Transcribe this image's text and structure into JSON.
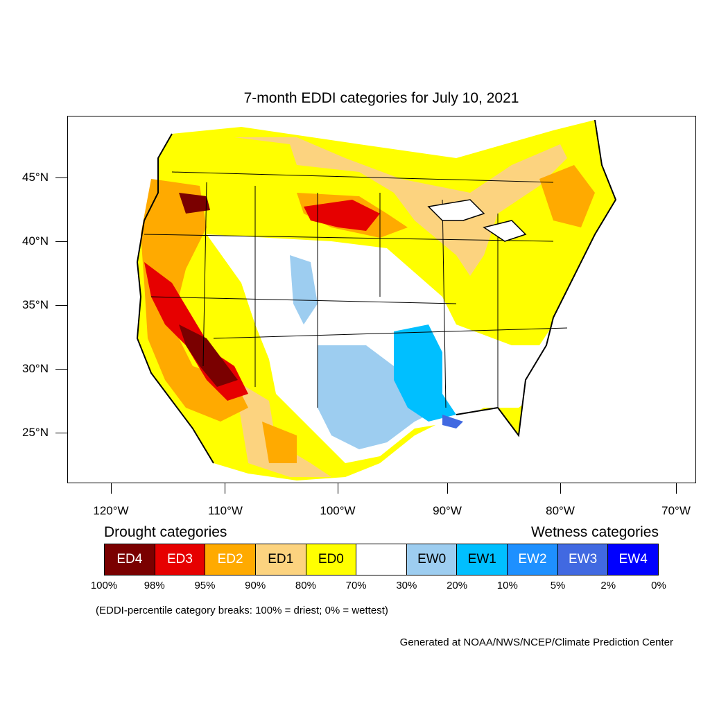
{
  "title": "7-month EDDI categories for July 10, 2021",
  "map": {
    "latitude_labels": [
      "45°N",
      "40°N",
      "35°N",
      "30°N",
      "25°N"
    ],
    "longitude_labels": [
      "120°W",
      "110°W",
      "100°W",
      "90°W",
      "80°W",
      "70°W"
    ]
  },
  "legend": {
    "drought_heading": "Drought categories",
    "wetness_heading": "Wetness categories",
    "categories": [
      {
        "label": "ED4",
        "color": "#7a0000",
        "text_color": "#ffffff"
      },
      {
        "label": "ED3",
        "color": "#e60000",
        "text_color": "#ffffff"
      },
      {
        "label": "ED2",
        "color": "#ffaa00",
        "text_color": "#ffffff"
      },
      {
        "label": "ED1",
        "color": "#fcd37f",
        "text_color": "#000000"
      },
      {
        "label": "ED0",
        "color": "#ffff00",
        "text_color": "#000000"
      },
      {
        "label": "",
        "color": "#ffffff",
        "text_color": "#000000"
      },
      {
        "label": "EW0",
        "color": "#9dcdf0",
        "text_color": "#000000"
      },
      {
        "label": "EW1",
        "color": "#00bfff",
        "text_color": "#000000"
      },
      {
        "label": "EW2",
        "color": "#1e90ff",
        "text_color": "#ffffff"
      },
      {
        "label": "EW3",
        "color": "#4169e1",
        "text_color": "#ffffff"
      },
      {
        "label": "EW4",
        "color": "#0000ff",
        "text_color": "#ffffff"
      }
    ],
    "percentiles": [
      "100%",
      "98%",
      "95%",
      "90%",
      "80%",
      "70%",
      "30%",
      "20%",
      "10%",
      "5%",
      "2%",
      "0%"
    ]
  },
  "note": "(EDDI-percentile category breaks: 100% = driest; 0% = wettest)",
  "credit": "Generated at NOAA/NWS/NCEP/Climate Prediction Center"
}
